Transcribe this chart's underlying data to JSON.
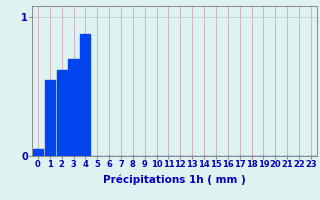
{
  "categories": [
    0,
    1,
    2,
    3,
    4,
    5,
    6,
    7,
    8,
    9,
    10,
    11,
    12,
    13,
    14,
    15,
    16,
    17,
    18,
    19,
    20,
    21,
    22,
    23
  ],
  "values": [
    0.05,
    0.55,
    0.62,
    0.7,
    0.88,
    0,
    0,
    0,
    0,
    0,
    0,
    0,
    0,
    0,
    0,
    0,
    0,
    0,
    0,
    0,
    0,
    0,
    0,
    0
  ],
  "bar_color": "#0044ee",
  "background_color": "#dff2f2",
  "grid_color_v": "#c8a0a0",
  "grid_color_h": "#b8c8c8",
  "axis_color": "#888888",
  "text_color": "#0000bb",
  "xlabel": "Précipitations 1h ( mm )",
  "ylim": [
    0,
    1.08
  ],
  "xlim": [
    -0.5,
    23.5
  ],
  "yticks": [
    0,
    1
  ],
  "xticks": [
    0,
    1,
    2,
    3,
    4,
    5,
    6,
    7,
    8,
    9,
    10,
    11,
    12,
    13,
    14,
    15,
    16,
    17,
    18,
    19,
    20,
    21,
    22,
    23
  ],
  "tick_fontsize": 6.0,
  "xlabel_fontsize": 7.5,
  "bar_width": 0.85
}
